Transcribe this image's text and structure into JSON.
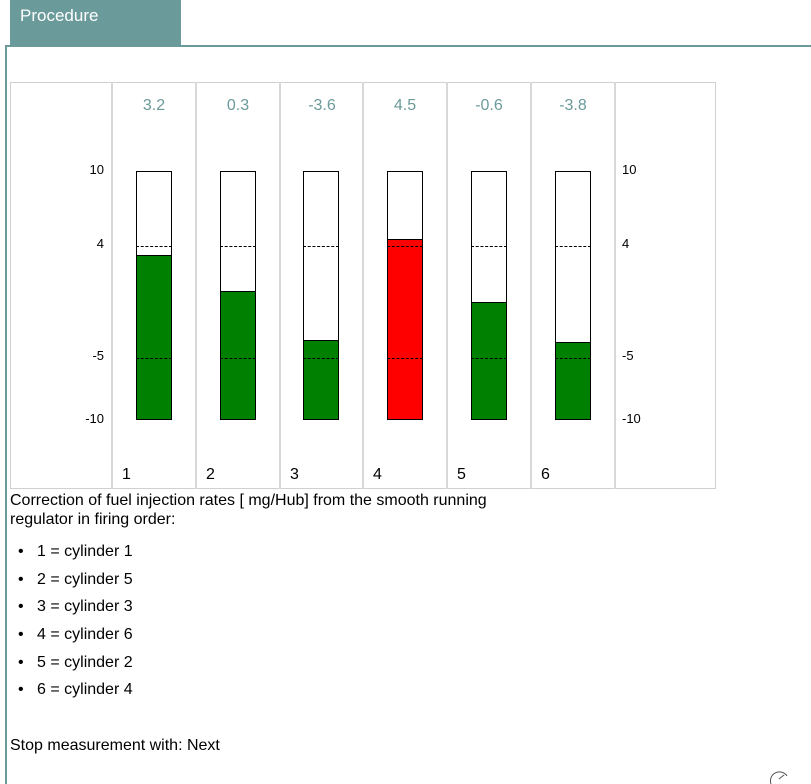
{
  "tab": {
    "label": "Procedure"
  },
  "chart_data": {
    "type": "bar",
    "categories": [
      "1",
      "2",
      "3",
      "4",
      "5",
      "6"
    ],
    "values": [
      3.2,
      0.3,
      -3.6,
      4.5,
      -0.6,
      -3.8
    ],
    "ylim": [
      -10,
      10
    ],
    "yticks": [
      "10",
      "4",
      "-5",
      "-10"
    ],
    "reference_lines": [
      4,
      -5
    ],
    "bar_colors": [
      "#008000",
      "#008000",
      "#008000",
      "#ff0000",
      "#008000",
      "#008000"
    ],
    "value_label_color": "#6b9a9a"
  },
  "caption": "Correction of fuel injection rates [ mg/Hub] from the smooth running regulator in firing order:",
  "legend": [
    "1 = cylinder 1",
    "2 = cylinder 5",
    "3 = cylinder 3",
    "4 = cylinder 6",
    "5 = cylinder 2",
    "6 = cylinder 4"
  ],
  "stop_text": "Stop measurement with: Next",
  "icons": {
    "corner": "pen-icon"
  },
  "colors": {
    "accent": "#6b9a9a",
    "ok": "#008000",
    "alert": "#ff0000"
  }
}
